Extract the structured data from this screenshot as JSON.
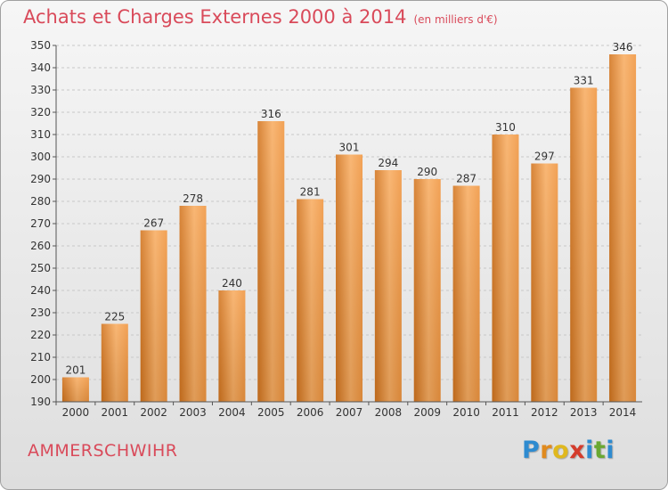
{
  "header": {
    "title": "Achats et Charges Externes 2000 à 2014",
    "subtitle": "(en milliers d'€)"
  },
  "footer": {
    "city": "AMMERSCHWIHR",
    "logo": {
      "letters": [
        "P",
        "r",
        "o",
        "x",
        "i",
        "t",
        "i"
      ],
      "colors": [
        "#2e8bd0",
        "#e08a1e",
        "#e0b81e",
        "#d43c2c",
        "#2e8bd0",
        "#6aa832",
        "#2e8bd0"
      ]
    }
  },
  "colors": {
    "bar": "#f0953f",
    "bar_highlight": "#f8ad62",
    "bar_shadow": "#d2741e",
    "grid": "#c8c8c8",
    "axis": "#555555",
    "text": "#333333",
    "title": "#d94a5a"
  },
  "chart_data": {
    "type": "bar",
    "title": "Achats et Charges Externes 2000 à 2014",
    "subtitle": "(en milliers d'€)",
    "categories": [
      "2000",
      "2001",
      "2002",
      "2003",
      "2004",
      "2005",
      "2006",
      "2007",
      "2008",
      "2009",
      "2010",
      "2011",
      "2012",
      "2013",
      "2014"
    ],
    "values": [
      201,
      225,
      267,
      278,
      240,
      316,
      281,
      301,
      294,
      290,
      287,
      310,
      297,
      331,
      346
    ],
    "ylim": [
      190,
      350
    ],
    "yticks": [
      190,
      200,
      210,
      220,
      230,
      240,
      250,
      260,
      270,
      280,
      290,
      300,
      310,
      320,
      330,
      340,
      350
    ],
    "grid": true,
    "data_labels": true
  }
}
